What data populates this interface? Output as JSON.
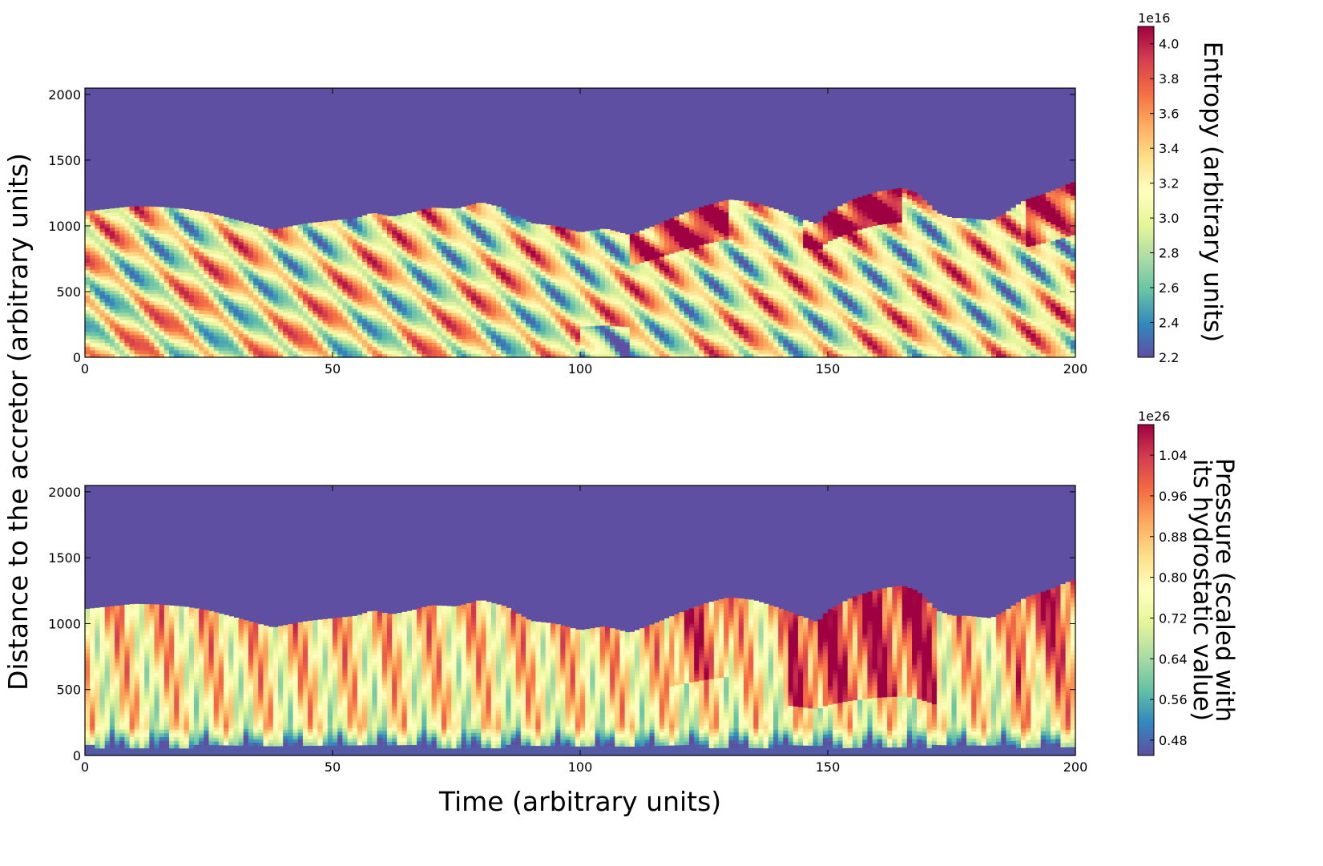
{
  "colors": {
    "colormap": "Spectral_r",
    "masked_region": "#5e4fa2",
    "frame": "#000000"
  },
  "figure": {
    "xlabel": "Time (arbitrary units)",
    "ylabel": "Distance to the accretor (arbitrary units)"
  },
  "chart_data": [
    {
      "type": "heatmap",
      "title": "",
      "xlabel": "Time (arbitrary units)",
      "ylabel": "Distance to the accretor (arbitrary units)",
      "xlim": [
        0,
        200
      ],
      "ylim": [
        0,
        2048
      ],
      "x_ticks": [
        0,
        50,
        100,
        150,
        200
      ],
      "y_ticks": [
        0,
        500,
        1000,
        1500,
        2000
      ],
      "x_tick_labels": [
        "0",
        "50",
        "100",
        "150",
        "200"
      ],
      "y_tick_labels": [
        "0",
        "500",
        "1000",
        "1500",
        "2000"
      ],
      "colorbar": {
        "label": "Entropy (arbitrary units)",
        "exponent_label": "1e16",
        "range": [
          2.2,
          4.1
        ],
        "ticks": [
          2.2,
          2.4,
          2.6,
          2.8,
          3.0,
          3.2,
          3.4,
          3.6,
          3.8,
          4.0
        ],
        "tick_labels": [
          "2.2",
          "2.4",
          "2.6",
          "2.8",
          "3.0",
          "3.2",
          "3.4",
          "3.6",
          "3.8",
          "4.0"
        ]
      },
      "boundary": {
        "time": [
          0,
          5,
          10,
          15,
          20,
          25,
          30,
          35,
          38,
          42,
          45,
          50,
          55,
          58,
          62,
          66,
          70,
          75,
          80,
          85,
          90,
          95,
          100,
          105,
          110,
          115,
          120,
          125,
          130,
          135,
          140,
          145,
          148,
          150,
          155,
          160,
          165,
          168,
          172,
          175,
          178,
          183,
          186,
          190,
          195,
          200
        ],
        "distance": [
          1110,
          1130,
          1150,
          1145,
          1130,
          1100,
          1050,
          1000,
          970,
          1000,
          1020,
          1040,
          1060,
          1100,
          1070,
          1100,
          1140,
          1130,
          1180,
          1130,
          1020,
          1000,
          950,
          980,
          930,
          1000,
          1080,
          1150,
          1200,
          1180,
          1120,
          1050,
          1010,
          1100,
          1200,
          1260,
          1290,
          1250,
          1100,
          1060,
          1060,
          1040,
          1100,
          1200,
          1260,
          1340
        ]
      }
    },
    {
      "type": "heatmap",
      "title": "",
      "xlabel": "Time (arbitrary units)",
      "ylabel": "Distance to the accretor (arbitrary units)",
      "xlim": [
        0,
        200
      ],
      "ylim": [
        0,
        2048
      ],
      "x_ticks": [
        0,
        50,
        100,
        150,
        200
      ],
      "y_ticks": [
        0,
        500,
        1000,
        1500,
        2000
      ],
      "x_tick_labels": [
        "0",
        "50",
        "100",
        "150",
        "200"
      ],
      "y_tick_labels": [
        "0",
        "500",
        "1000",
        "1500",
        "2000"
      ],
      "colorbar": {
        "label": "Pressure (scaled with its hydrostatic value)",
        "label_lines": [
          "Pressure (scaled with",
          "its hydrostatic value)"
        ],
        "exponent_label": "1e26",
        "range": [
          0.45,
          1.1
        ],
        "ticks": [
          0.48,
          0.56,
          0.64,
          0.72,
          0.8,
          0.88,
          0.96,
          1.04
        ],
        "tick_labels": [
          "0.48",
          "0.56",
          "0.64",
          "0.72",
          "0.80",
          "0.88",
          "0.96",
          "1.04"
        ]
      },
      "boundary": {
        "time": [
          0,
          5,
          10,
          15,
          20,
          25,
          30,
          35,
          38,
          42,
          45,
          50,
          55,
          58,
          62,
          66,
          70,
          75,
          80,
          85,
          90,
          95,
          100,
          105,
          110,
          115,
          120,
          125,
          130,
          135,
          140,
          145,
          148,
          150,
          155,
          160,
          165,
          168,
          172,
          175,
          178,
          183,
          186,
          190,
          195,
          200
        ],
        "distance": [
          1110,
          1130,
          1150,
          1145,
          1130,
          1100,
          1050,
          1000,
          970,
          1000,
          1020,
          1040,
          1060,
          1100,
          1070,
          1100,
          1140,
          1130,
          1180,
          1130,
          1020,
          1000,
          950,
          980,
          930,
          1000,
          1080,
          1150,
          1200,
          1180,
          1120,
          1050,
          1010,
          1100,
          1200,
          1260,
          1290,
          1250,
          1100,
          1060,
          1060,
          1040,
          1100,
          1200,
          1260,
          1340
        ]
      }
    }
  ]
}
